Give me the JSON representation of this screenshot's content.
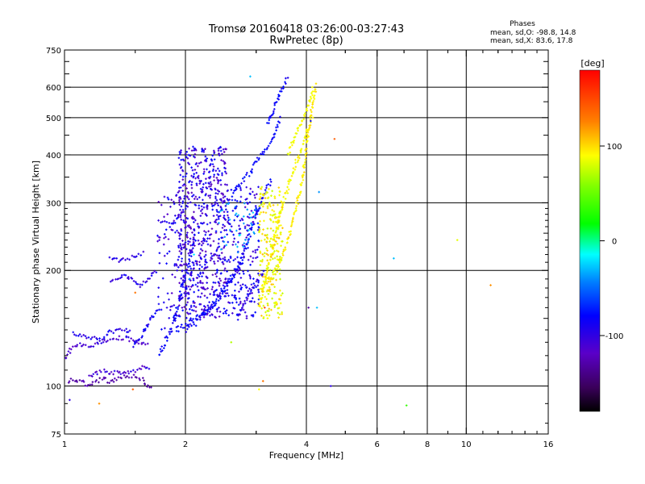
{
  "chart_data": {
    "type": "scatter",
    "title": "Tromsø 20160418 03:26:00-03:27:43",
    "subtitle": "RwPretec (8p)",
    "xlabel": "Frequency [MHz]",
    "ylabel": "Stationary phase Virtual Height [km]",
    "x_scale": "log",
    "y_scale": "log",
    "xlim": [
      1,
      16
    ],
    "ylim": [
      75,
      750
    ],
    "x_ticks": [
      {
        "v": 1,
        "label": "1"
      },
      {
        "v": 2,
        "label": "2"
      },
      {
        "v": 4,
        "label": "4"
      },
      {
        "v": 6,
        "label": "6"
      },
      {
        "v": 8,
        "label": "8"
      },
      {
        "v": 10,
        "label": "10"
      },
      {
        "v": 16,
        "label": "16"
      }
    ],
    "y_ticks": [
      {
        "v": 75,
        "label": "75"
      },
      {
        "v": 100,
        "label": "100"
      },
      {
        "v": 200,
        "label": "200"
      },
      {
        "v": 300,
        "label": "300"
      },
      {
        "v": 400,
        "label": "400"
      },
      {
        "v": 500,
        "label": "500"
      },
      {
        "v": 600,
        "label": "600"
      },
      {
        "v": 750,
        "label": "750"
      }
    ],
    "x_grid": [
      2,
      4,
      6,
      8,
      10
    ],
    "y_grid": [
      100,
      200,
      300,
      400,
      500,
      600
    ],
    "grid": true,
    "stats": {
      "heading": "Phases",
      "line_o": "mean, sd,O: -98.8, 14.8",
      "line_x": "mean, sd,X:  83.6, 17.8"
    },
    "colorbar": {
      "title": "[deg]",
      "range": [
        -180,
        180
      ],
      "ticks": [
        {
          "v": 100,
          "label": "100"
        },
        {
          "v": 0,
          "label": "0"
        },
        {
          "v": -100,
          "label": "-100"
        }
      ]
    },
    "point_color_key": "phase_deg",
    "traces": [
      {
        "phase": -130,
        "jitter_h": 0.012,
        "pts": [
          [
            1.02,
            102
          ],
          [
            1.05,
            104
          ],
          [
            1.1,
            103
          ],
          [
            1.15,
            100
          ],
          [
            1.2,
            103
          ],
          [
            1.25,
            105
          ],
          [
            1.3,
            102
          ],
          [
            1.35,
            104
          ],
          [
            1.42,
            106
          ],
          [
            1.5,
            106
          ],
          [
            1.56,
            104
          ],
          [
            1.6,
            100
          ],
          [
            1.65,
            98
          ]
        ]
      },
      {
        "phase": -115,
        "jitter_h": 0.012,
        "pts": [
          [
            1.15,
            106
          ],
          [
            1.2,
            108
          ],
          [
            1.25,
            110
          ],
          [
            1.3,
            108
          ],
          [
            1.35,
            109
          ],
          [
            1.4,
            108
          ],
          [
            1.45,
            109
          ],
          [
            1.5,
            110
          ],
          [
            1.58,
            112
          ],
          [
            1.64,
            112
          ]
        ]
      },
      {
        "phase": -115,
        "jitter_h": 0.012,
        "pts": [
          [
            1.0,
            118
          ],
          [
            1.04,
            125
          ],
          [
            1.08,
            128
          ],
          [
            1.12,
            127
          ],
          [
            1.18,
            128
          ],
          [
            1.25,
            131
          ],
          [
            1.3,
            132
          ],
          [
            1.36,
            133
          ],
          [
            1.42,
            134
          ],
          [
            1.48,
            131
          ],
          [
            1.55,
            130
          ],
          [
            1.62,
            127
          ]
        ]
      },
      {
        "phase": -108,
        "jitter_h": 0.012,
        "pts": [
          [
            1.05,
            138
          ],
          [
            1.1,
            135
          ],
          [
            1.15,
            134
          ],
          [
            1.2,
            133
          ],
          [
            1.25,
            133
          ],
          [
            1.3,
            138
          ],
          [
            1.36,
            140
          ],
          [
            1.42,
            140
          ],
          [
            1.47,
            138
          ]
        ]
      },
      {
        "phase": -105,
        "jitter_h": 0.015,
        "pts": [
          [
            1.48,
            128
          ],
          [
            1.55,
            135
          ],
          [
            1.6,
            142
          ],
          [
            1.65,
            150
          ],
          [
            1.7,
            156
          ],
          [
            1.75,
            158
          ]
        ]
      },
      {
        "phase": -110,
        "jitter_h": 0.012,
        "pts": [
          [
            1.3,
            185
          ],
          [
            1.36,
            190
          ],
          [
            1.42,
            195
          ],
          [
            1.45,
            190
          ],
          [
            1.5,
            187
          ],
          [
            1.55,
            182
          ],
          [
            1.6,
            188
          ],
          [
            1.65,
            195
          ],
          [
            1.7,
            200
          ]
        ]
      },
      {
        "phase": -110,
        "jitter_h": 0.012,
        "pts": [
          [
            1.3,
            215
          ],
          [
            1.36,
            212
          ],
          [
            1.42,
            215
          ],
          [
            1.5,
            217
          ],
          [
            1.55,
            220
          ],
          [
            1.58,
            223
          ]
        ]
      },
      {
        "phase": -105,
        "jitter_h": 0.012,
        "pts": [
          [
            1.72,
            270
          ],
          [
            1.78,
            268
          ],
          [
            1.84,
            266
          ],
          [
            1.9,
            270
          ],
          [
            1.95,
            280
          ]
        ]
      },
      {
        "phase": -100,
        "jitter_h": 0.02,
        "pts": [
          [
            1.72,
            120
          ],
          [
            1.78,
            130
          ],
          [
            1.84,
            140
          ],
          [
            1.88,
            150
          ],
          [
            1.92,
            162
          ],
          [
            1.95,
            175
          ],
          [
            1.98,
            190
          ],
          [
            2.02,
            205
          ],
          [
            2.06,
            220
          ],
          [
            2.1,
            240
          ]
        ]
      },
      {
        "phase": -100,
        "jitter_h": 0.02,
        "pts": [
          [
            1.9,
            140
          ],
          [
            2.0,
            143
          ],
          [
            2.1,
            148
          ],
          [
            2.2,
            153
          ],
          [
            2.3,
            160
          ],
          [
            2.4,
            168
          ],
          [
            2.5,
            178
          ],
          [
            2.6,
            190
          ],
          [
            2.7,
            205
          ],
          [
            2.8,
            225
          ],
          [
            2.9,
            250
          ],
          [
            3.0,
            280
          ],
          [
            3.1,
            305
          ],
          [
            3.2,
            330
          ],
          [
            3.3,
            345
          ]
        ]
      },
      {
        "phase": -102,
        "jitter_h": 0.02,
        "pts": [
          [
            2.0,
            140
          ],
          [
            2.1,
            145
          ],
          [
            2.2,
            152
          ],
          [
            2.3,
            160
          ],
          [
            2.4,
            168
          ],
          [
            2.5,
            178
          ],
          [
            2.6,
            188
          ],
          [
            2.7,
            200
          ],
          [
            2.8,
            215
          ]
        ]
      },
      {
        "phase": -98,
        "jitter_h": 0.015,
        "pts": [
          [
            2.6,
            320
          ],
          [
            2.7,
            330
          ],
          [
            2.8,
            345
          ],
          [
            2.9,
            360
          ],
          [
            3.0,
            385
          ],
          [
            3.1,
            400
          ],
          [
            3.2,
            420
          ],
          [
            3.3,
            440
          ],
          [
            3.35,
            460
          ],
          [
            3.4,
            480
          ],
          [
            3.45,
            500
          ]
        ]
      },
      {
        "phase": -100,
        "jitter_h": 0.012,
        "pts": [
          [
            3.2,
            480
          ],
          [
            3.25,
            500
          ],
          [
            3.3,
            520
          ],
          [
            3.35,
            540
          ],
          [
            3.4,
            560
          ],
          [
            3.45,
            580
          ],
          [
            3.5,
            600
          ],
          [
            3.55,
            620
          ],
          [
            3.6,
            640
          ]
        ]
      },
      {
        "phase": -110,
        "jitter_h": 0.015,
        "pts": [
          [
            2.7,
            150
          ],
          [
            2.8,
            165
          ],
          [
            2.9,
            178
          ],
          [
            3.0,
            185
          ],
          [
            3.05,
            190
          ],
          [
            3.1,
            195
          ],
          [
            3.15,
            200
          ]
        ]
      },
      {
        "phase": 95,
        "jitter_h": 0.018,
        "pts": [
          [
            3.1,
            180
          ],
          [
            3.2,
            188
          ],
          [
            3.3,
            195
          ],
          [
            3.4,
            205
          ],
          [
            3.5,
            220
          ],
          [
            3.6,
            240
          ],
          [
            3.7,
            270
          ],
          [
            3.8,
            300
          ],
          [
            3.9,
            340
          ],
          [
            3.95,
            380
          ],
          [
            4.0,
            420
          ],
          [
            4.05,
            460
          ],
          [
            4.1,
            500
          ],
          [
            4.15,
            540
          ],
          [
            4.2,
            580
          ],
          [
            4.25,
            610
          ]
        ]
      },
      {
        "phase": 90,
        "jitter_h": 0.018,
        "pts": [
          [
            3.05,
            160
          ],
          [
            3.1,
            170
          ],
          [
            3.15,
            185
          ],
          [
            3.2,
            200
          ],
          [
            3.25,
            215
          ],
          [
            3.3,
            230
          ],
          [
            3.35,
            250
          ],
          [
            3.4,
            270
          ],
          [
            3.5,
            300
          ],
          [
            3.6,
            330
          ],
          [
            3.7,
            360
          ],
          [
            3.8,
            390
          ],
          [
            3.9,
            420
          ],
          [
            4.0,
            450
          ],
          [
            4.05,
            470
          ]
        ]
      },
      {
        "phase": 85,
        "jitter_h": 0.012,
        "pts": [
          [
            3.6,
            400
          ],
          [
            3.7,
            430
          ],
          [
            3.8,
            460
          ],
          [
            3.9,
            490
          ],
          [
            4.0,
            520
          ],
          [
            4.1,
            560
          ],
          [
            4.15,
            600
          ]
        ]
      }
    ],
    "clouds": [
      {
        "x": [
          1.92,
          2.55
        ],
        "y": [
          150,
          420
        ],
        "n": 650,
        "phase": [
          -125,
          -95
        ],
        "skew": 0.0
      },
      {
        "x": [
          2.55,
          3.05
        ],
        "y": [
          150,
          330
        ],
        "n": 200,
        "phase": [
          -118,
          -92
        ],
        "skew": 0.0
      },
      {
        "x": [
          1.7,
          2.1
        ],
        "y": [
          140,
          320
        ],
        "n": 110,
        "phase": [
          -120,
          -100
        ],
        "skew": 0.0
      },
      {
        "x": [
          3.05,
          3.5
        ],
        "y": [
          150,
          330
        ],
        "n": 240,
        "phase": [
          65,
          110
        ],
        "skew": 0.0
      },
      {
        "x": [
          2.4,
          3.0
        ],
        "y": [
          220,
          300
        ],
        "n": 40,
        "phase": [
          -50,
          -20
        ],
        "skew": 0.0
      }
    ],
    "scatter": [
      [
        1.03,
        92,
        -110
      ],
      [
        1.22,
        90,
        120
      ],
      [
        1.48,
        98,
        140
      ],
      [
        1.5,
        175,
        130
      ],
      [
        2.05,
        190,
        -40
      ],
      [
        2.1,
        220,
        -20
      ],
      [
        2.6,
        130,
        60
      ],
      [
        2.9,
        640,
        -30
      ],
      [
        3.05,
        98,
        90
      ],
      [
        3.12,
        103,
        130
      ],
      [
        3.15,
        160,
        150
      ],
      [
        4.05,
        160,
        -130
      ],
      [
        4.1,
        490,
        -100
      ],
      [
        4.15,
        500,
        90
      ],
      [
        4.25,
        160,
        -30
      ],
      [
        4.3,
        320,
        -40
      ],
      [
        4.6,
        100,
        -110
      ],
      [
        4.7,
        440,
        140
      ],
      [
        6.6,
        215,
        -30
      ],
      [
        7.1,
        89,
        15
      ],
      [
        9.5,
        240,
        80
      ],
      [
        11.5,
        183,
        120
      ]
    ]
  }
}
